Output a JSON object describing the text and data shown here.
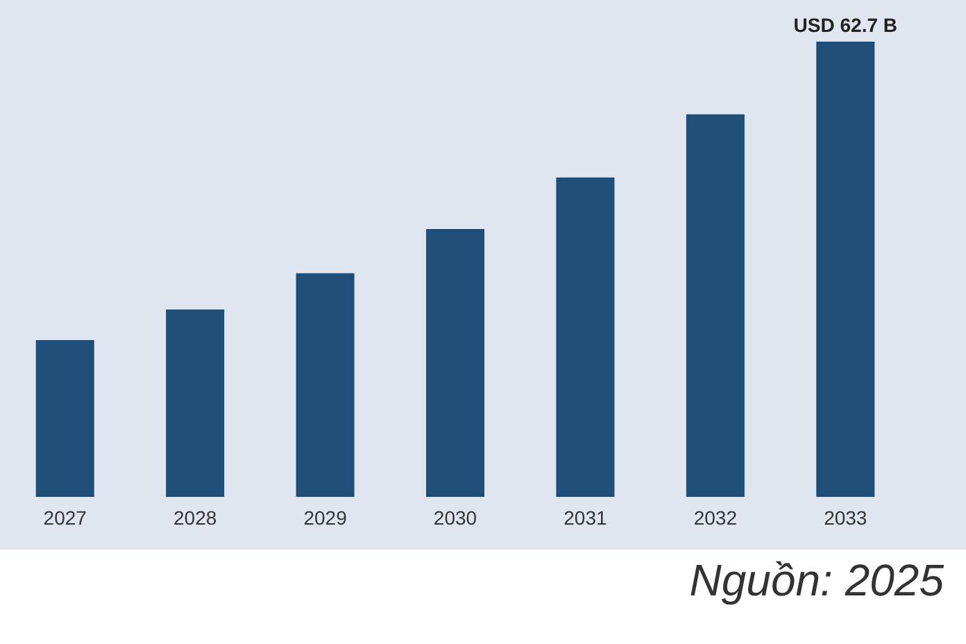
{
  "chart_data": {
    "type": "bar",
    "categories": [
      "2027",
      "2028",
      "2029",
      "2030",
      "2031",
      "2032",
      "2033"
    ],
    "values": [
      21.6,
      25.8,
      30.8,
      36.9,
      44.0,
      52.7,
      62.7
    ],
    "color": "#1f4e79",
    "value_labels": [
      null,
      null,
      null,
      null,
      null,
      null,
      "USD 62.7 B"
    ],
    "annotations": [
      "Nguồn: 2025"
    ]
  }
}
